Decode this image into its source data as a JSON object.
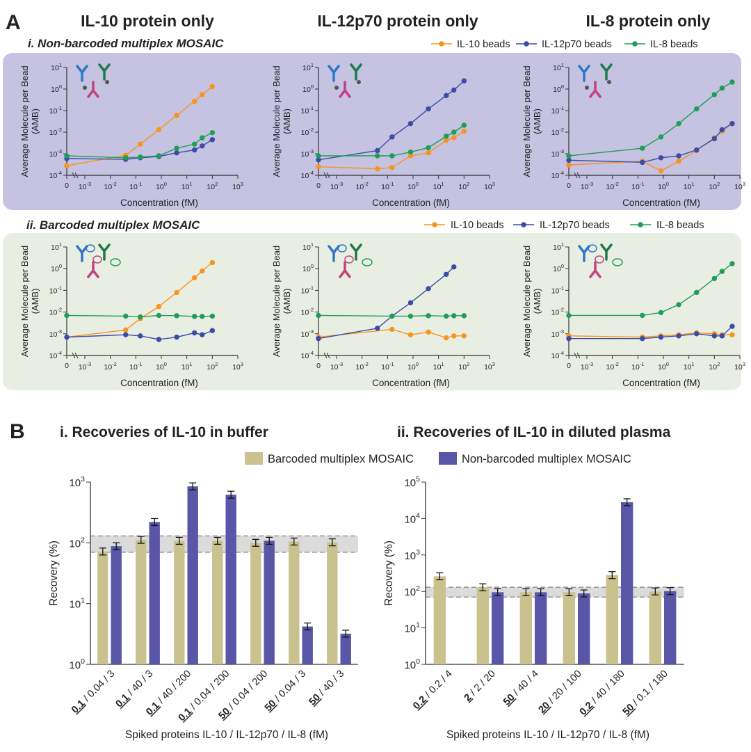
{
  "panel_a": {
    "letter": "A",
    "column_titles": [
      "IL-10 protein only",
      "IL-12p70 protein only",
      "IL-8 protein only"
    ],
    "rows": [
      {
        "title": "i. Non-barcoded multiplex MOSAIC"
      },
      {
        "title": "ii. Barcoded multiplex MOSAIC"
      }
    ],
    "legend": [
      "IL-10 beads",
      "IL-12p70 beads",
      "IL-8 beads"
    ],
    "ylabel_line1": "Average Molecule per Bead",
    "ylabel_line2": "(AMB)",
    "xlabel": "Concentration (fM)",
    "x_tick_labels": [
      "0",
      "10-3",
      "10-2",
      "10-1",
      "100",
      "101",
      "102",
      "103"
    ],
    "y_tick_labels": [
      "10-4",
      "10-3",
      "10-2",
      "10-1",
      "100",
      "101"
    ]
  },
  "panel_b": {
    "letter": "B",
    "ylabel": "Recovery (%)",
    "xlabel": "Spiked proteins IL-10 / IL-12p70 / IL-8 (fM)",
    "legend": [
      "Barcoded multiplex MOSAIC",
      "Non-barcoded multiplex MOSAIC"
    ]
  },
  "colors": {
    "il10": "#F7941D",
    "il12": "#3B4BA8",
    "il8": "#1E9E55",
    "row_i_bg": "#C5C2E2",
    "row_ii_bg": "#E9EEE3",
    "bar_barcoded": "#C9C28F",
    "bar_nonbarcoded": "#5956A8",
    "band": "#CFCFCF"
  },
  "chart_data": [
    {
      "type": "line",
      "row": "i",
      "column": "IL-10 protein only",
      "xscale": "log",
      "yscale": "log",
      "ylim": [
        0.0001,
        10
      ],
      "series": [
        {
          "name": "IL-10 beads",
          "x": [
            0,
            0.04,
            0.15,
            0.8,
            4,
            20,
            40,
            100
          ],
          "y": [
            0.00028,
            0.00085,
            0.0028,
            0.013,
            0.06,
            0.27,
            0.55,
            1.3
          ]
        },
        {
          "name": "IL-12p70 beads",
          "x": [
            0,
            0.04,
            0.15,
            0.8,
            4,
            20,
            40,
            100
          ],
          "y": [
            0.0006,
            0.00055,
            0.00065,
            0.00075,
            0.0011,
            0.0015,
            0.0023,
            0.0045
          ]
        },
        {
          "name": "IL-8 beads",
          "x": [
            0,
            0.04,
            0.15,
            0.8,
            4,
            20,
            40,
            100
          ],
          "y": [
            0.0008,
            0.00065,
            0.0007,
            0.0008,
            0.0018,
            0.0028,
            0.0055,
            0.0095
          ]
        }
      ]
    },
    {
      "type": "line",
      "row": "i",
      "column": "IL-12p70 protein only",
      "xscale": "log",
      "yscale": "log",
      "ylim": [
        0.0001,
        10
      ],
      "series": [
        {
          "name": "IL-10 beads",
          "x": [
            0,
            0.04,
            0.15,
            0.8,
            4,
            20,
            40,
            100
          ],
          "y": [
            0.00025,
            0.0002,
            0.00023,
            0.0008,
            0.0011,
            0.0042,
            0.0055,
            0.011
          ]
        },
        {
          "name": "IL-12p70 beads",
          "x": [
            0,
            0.04,
            0.15,
            0.8,
            4,
            20,
            40,
            100
          ],
          "y": [
            0.00052,
            0.0014,
            0.006,
            0.025,
            0.12,
            0.5,
            0.9,
            2.4
          ]
        },
        {
          "name": "IL-8 beads",
          "x": [
            0,
            0.04,
            0.15,
            0.8,
            4,
            20,
            40,
            100
          ],
          "y": [
            0.0008,
            0.0008,
            0.0008,
            0.0012,
            0.0019,
            0.0065,
            0.01,
            0.021
          ]
        }
      ]
    },
    {
      "type": "line",
      "row": "i",
      "column": "IL-8 protein only",
      "xscale": "log",
      "yscale": "log",
      "ylim": [
        0.0001,
        10
      ],
      "series": [
        {
          "name": "IL-10 beads",
          "x": [
            0,
            0.15,
            0.8,
            4,
            20,
            100,
            200,
            500
          ],
          "y": [
            0.0003,
            0.00045,
            0.00016,
            0.00045,
            0.0014,
            0.0055,
            0.011,
            0.025
          ]
        },
        {
          "name": "IL-12p70 beads",
          "x": [
            0,
            0.15,
            0.8,
            4,
            20,
            100,
            200,
            500
          ],
          "y": [
            0.0005,
            0.0004,
            0.00065,
            0.0008,
            0.0015,
            0.005,
            0.013,
            0.025
          ]
        },
        {
          "name": "IL-8 beads",
          "x": [
            0,
            0.15,
            0.8,
            4,
            20,
            100,
            200,
            500
          ],
          "y": [
            0.0008,
            0.0018,
            0.006,
            0.025,
            0.12,
            0.55,
            1.1,
            2.1
          ]
        }
      ]
    },
    {
      "type": "line",
      "row": "ii",
      "column": "IL-10 protein only",
      "xscale": "log",
      "yscale": "log",
      "ylim": [
        0.0001,
        10
      ],
      "series": [
        {
          "name": "IL-10 beads",
          "x": [
            0,
            0.04,
            0.15,
            0.8,
            4,
            20,
            40,
            100
          ],
          "y": [
            0.0007,
            0.0015,
            0.005,
            0.018,
            0.08,
            0.38,
            0.78,
            1.9
          ]
        },
        {
          "name": "IL-12p70 beads",
          "x": [
            0,
            0.04,
            0.15,
            0.8,
            4,
            20,
            40,
            100
          ],
          "y": [
            0.0007,
            0.0009,
            0.0008,
            0.00055,
            0.0007,
            0.0011,
            0.0009,
            0.0014
          ]
        },
        {
          "name": "IL-8 beads",
          "x": [
            0,
            0.04,
            0.15,
            0.8,
            4,
            20,
            40,
            100
          ],
          "y": [
            0.007,
            0.0065,
            0.006,
            0.007,
            0.0068,
            0.0063,
            0.0063,
            0.0065
          ]
        }
      ]
    },
    {
      "type": "line",
      "row": "ii",
      "column": "IL-12p70 protein only",
      "xscale": "log",
      "yscale": "log",
      "ylim": [
        0.0001,
        10
      ],
      "series": [
        {
          "name": "IL-10 beads",
          "x": [
            0,
            0.15,
            0.8,
            4,
            20,
            40,
            100
          ],
          "y": [
            0.0007,
            0.0016,
            0.0009,
            0.0012,
            0.00065,
            0.0008,
            0.0008
          ]
        },
        {
          "name": "IL-12p70 beads",
          "x": [
            0,
            0.04,
            0.15,
            0.8,
            4,
            20,
            40
          ],
          "y": [
            0.0006,
            0.0018,
            0.0065,
            0.027,
            0.12,
            0.55,
            1.2
          ]
        },
        {
          "name": "IL-8 beads",
          "x": [
            0,
            0.15,
            0.8,
            4,
            20,
            40,
            100
          ],
          "y": [
            0.007,
            0.0065,
            0.0065,
            0.0068,
            0.0065,
            0.0068,
            0.0068
          ]
        }
      ]
    },
    {
      "type": "line",
      "row": "ii",
      "column": "IL-8 protein only",
      "xscale": "log",
      "yscale": "log",
      "ylim": [
        0.0001,
        10
      ],
      "series": [
        {
          "name": "IL-10 beads",
          "x": [
            0,
            0.15,
            0.8,
            4,
            20,
            100,
            200,
            500
          ],
          "y": [
            0.0008,
            0.0007,
            0.0008,
            0.0009,
            0.0011,
            0.001,
            0.0009,
            0.0009
          ]
        },
        {
          "name": "IL-12p70 beads",
          "x": [
            0,
            0.15,
            0.8,
            4,
            20,
            100,
            200,
            500
          ],
          "y": [
            0.0006,
            0.0006,
            0.0007,
            0.0008,
            0.001,
            0.0008,
            0.0008,
            0.0022
          ]
        },
        {
          "name": "IL-8 beads",
          "x": [
            0,
            0.15,
            0.8,
            4,
            20,
            100,
            200,
            500
          ],
          "y": [
            0.007,
            0.007,
            0.0095,
            0.022,
            0.08,
            0.35,
            0.75,
            1.7
          ]
        }
      ]
    },
    {
      "type": "bar",
      "title": "i. Recoveries of IL-10 in buffer",
      "yscale": "log",
      "ylim": [
        1,
        1000
      ],
      "band": [
        70,
        130
      ],
      "categories": [
        {
          "bold": "0.1",
          "rest": " / 0.04 / 3"
        },
        {
          "bold": "0.1",
          "rest": " / 40 / 3"
        },
        {
          "bold": "0.1",
          "rest": " / 40 / 200"
        },
        {
          "bold": "0.1",
          "rest": " / 0.04 / 200"
        },
        {
          "bold": "50",
          "rest": " / 0.04 / 200"
        },
        {
          "bold": "50",
          "rest": " / 0.04 / 3"
        },
        {
          "bold": "50",
          "rest": " / 40 / 3"
        }
      ],
      "series": [
        {
          "name": "Barcoded multiplex MOSAIC",
          "values": [
            72,
            112,
            108,
            108,
            100,
            105,
            102
          ]
        },
        {
          "name": "Non-barcoded multiplex MOSAIC",
          "values": [
            88,
            220,
            850,
            620,
            108,
            4.2,
            3.2
          ]
        }
      ]
    },
    {
      "type": "bar",
      "title": "ii. Recoveries of IL-10 in diluted plasma",
      "yscale": "log",
      "ylim": [
        1,
        100000
      ],
      "band": [
        70,
        130
      ],
      "categories": [
        {
          "bold": "0.2",
          "rest": " / 0.2 / 4"
        },
        {
          "bold": "2",
          "rest": " / 2 / 20"
        },
        {
          "bold": "50",
          "rest": " / 40 / 4"
        },
        {
          "bold": "20",
          "rest": " / 20 / 100"
        },
        {
          "bold": "0.2",
          "rest": " / 40 / 180"
        },
        {
          "bold": "50",
          "rest": " / 0.1 / 180"
        }
      ],
      "series": [
        {
          "name": "Barcoded multiplex MOSAIC",
          "values": [
            260,
            130,
            95,
            95,
            280,
            100
          ]
        },
        {
          "name": "Non-barcoded multiplex MOSAIC",
          "values": [
            null,
            95,
            95,
            88,
            28000,
            102
          ]
        }
      ]
    }
  ]
}
